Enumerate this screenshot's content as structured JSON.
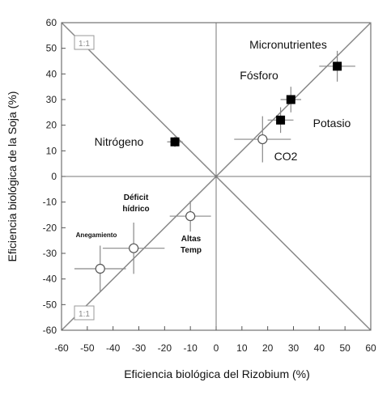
{
  "chart_data": {
    "type": "scatter",
    "xlabel": "Eficiencia biológica del Rizobium (%)",
    "ylabel": "Eficiencia biológica de la Soja (%)",
    "xlim": [
      -60,
      60
    ],
    "ylim": [
      -60,
      60
    ],
    "xticks": [
      "-60",
      "-50",
      "-40",
      "-30",
      "-20",
      "-10",
      "0",
      "10",
      "20",
      "30",
      "40",
      "50",
      "60"
    ],
    "yticks": [
      "60",
      "50",
      "40",
      "30",
      "20",
      "10",
      "0",
      "-10",
      "-20",
      "-30",
      "-40",
      "-50",
      "-60"
    ],
    "grid": false,
    "reference_lines": [
      "1:1",
      "1:1"
    ],
    "points": [
      {
        "label": "Nitrógeno",
        "x": -16,
        "y": 13.5,
        "xerr": 3,
        "yerr": 2,
        "marker": "square-filled"
      },
      {
        "label": "Micronutrientes",
        "x": 47,
        "y": 43,
        "xerr": 7,
        "yerr": 6,
        "marker": "square-filled"
      },
      {
        "label": "Fósforo",
        "x": 29,
        "y": 30,
        "xerr": 4,
        "yerr": 5,
        "marker": "square-filled"
      },
      {
        "label": "Potasio",
        "x": 25,
        "y": 22,
        "xerr": 5,
        "yerr": 5,
        "marker": "square-filled"
      },
      {
        "label": "CO2",
        "x": 18,
        "y": 14.5,
        "xerr": 11,
        "yerr": 9,
        "marker": "circle-open"
      },
      {
        "label": "Altas Temp",
        "x": -10,
        "y": -15.5,
        "xerr": 8,
        "yerr": 6,
        "marker": "circle-open"
      },
      {
        "label": "Déficit hídrico",
        "x": -32,
        "y": -28,
        "xerr": 12,
        "yerr": 10,
        "marker": "circle-open"
      },
      {
        "label": "Anegamiento",
        "x": -45,
        "y": -36,
        "xerr": 10,
        "yerr": 9,
        "marker": "circle-open"
      }
    ]
  }
}
